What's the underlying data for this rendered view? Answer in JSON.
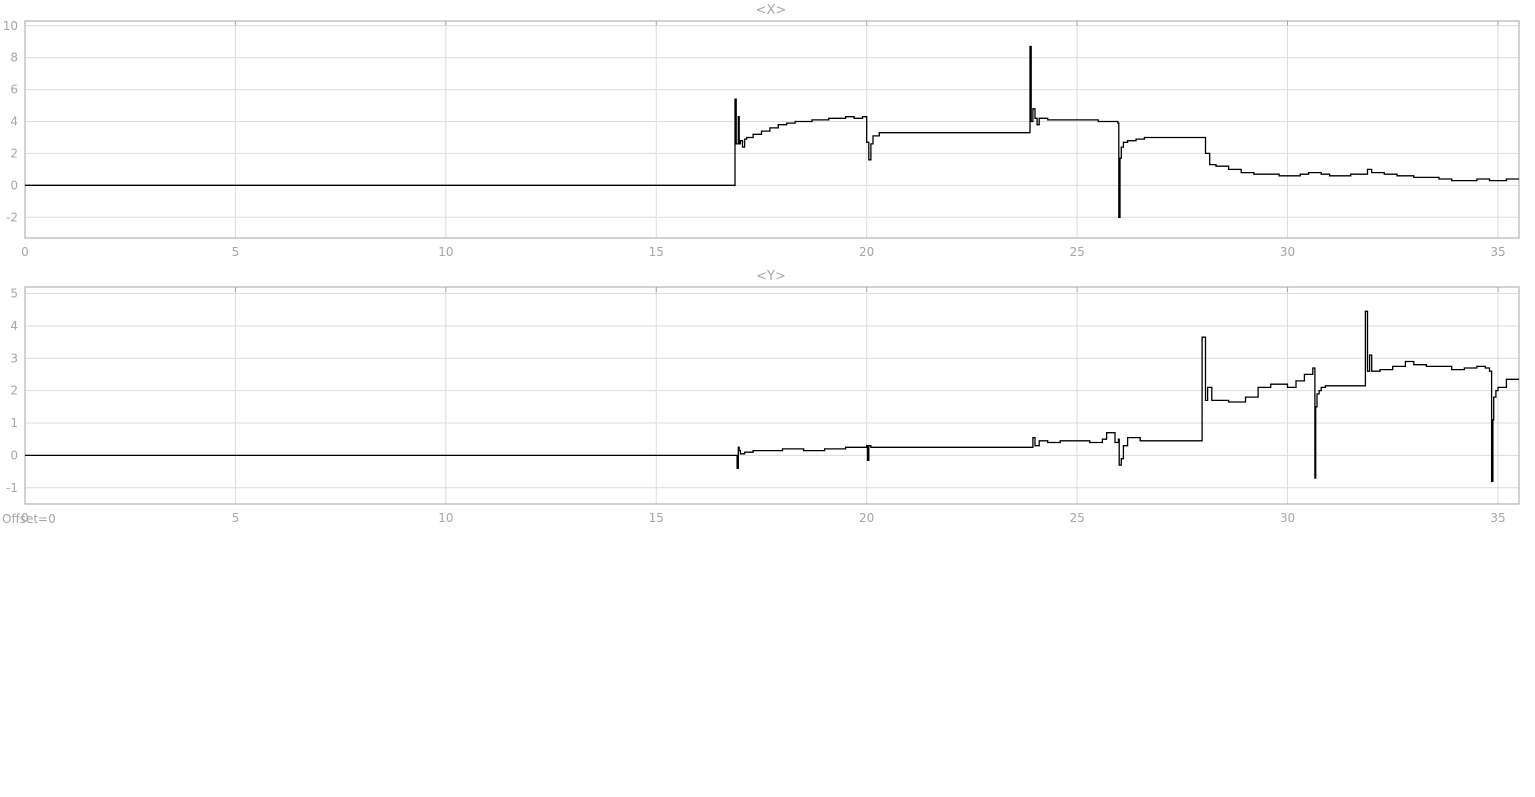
{
  "offset_label": "Offset=0",
  "colors": {
    "grid": "#dcdcdc",
    "axis": "#a6a6a6",
    "trace": "#000000",
    "text": "#a6a6a6"
  },
  "chart_data": [
    {
      "type": "line",
      "title": "<X>",
      "xlim": [
        0,
        35.5
      ],
      "ylim": [
        -3.3,
        10.3
      ],
      "xticks": [
        0,
        5,
        10,
        15,
        20,
        25,
        30,
        35
      ],
      "yticks": [
        -2,
        0,
        2,
        4,
        6,
        8,
        10
      ],
      "grid": true,
      "x": [
        0,
        16.85,
        16.87,
        16.9,
        16.92,
        16.95,
        16.97,
        17.0,
        17.05,
        17.1,
        17.15,
        17.3,
        17.5,
        17.7,
        17.9,
        18.1,
        18.3,
        18.5,
        18.7,
        18.9,
        19.1,
        19.3,
        19.5,
        19.7,
        19.9,
        20.0,
        20.05,
        20.1,
        20.15,
        20.3,
        21.0,
        22.0,
        23.0,
        23.85,
        23.88,
        23.91,
        23.95,
        24.0,
        24.05,
        24.1,
        24.3,
        24.6,
        24.9,
        25.2,
        25.5,
        25.8,
        25.97,
        25.99,
        26.02,
        26.05,
        26.1,
        26.2,
        26.4,
        26.6,
        27.0,
        27.5,
        28.0,
        28.05,
        28.15,
        28.3,
        28.6,
        28.9,
        29.2,
        29.5,
        29.8,
        30.0,
        30.3,
        30.5,
        30.8,
        31.0,
        31.5,
        31.8,
        31.9,
        32.0,
        32.3,
        32.6,
        33.0,
        33.3,
        33.6,
        33.9,
        34.2,
        34.5,
        34.8,
        35.0,
        35.2,
        35.5
      ],
      "y": [
        0,
        0,
        5.4,
        2.6,
        2.6,
        4.3,
        2.6,
        2.8,
        2.4,
        2.9,
        3.0,
        3.2,
        3.4,
        3.6,
        3.8,
        3.9,
        4.0,
        4.0,
        4.1,
        4.1,
        4.2,
        4.2,
        4.3,
        4.2,
        4.3,
        2.7,
        1.6,
        2.6,
        3.1,
        3.3,
        3.3,
        3.3,
        3.3,
        3.3,
        8.7,
        4.0,
        4.8,
        4.2,
        3.8,
        4.2,
        4.1,
        4.1,
        4.1,
        4.1,
        4.0,
        4.0,
        3.9,
        -2.0,
        1.7,
        2.4,
        2.7,
        2.8,
        2.9,
        3.0,
        3.0,
        3.0,
        3.0,
        2.0,
        1.3,
        1.2,
        1.0,
        0.8,
        0.7,
        0.7,
        0.6,
        0.6,
        0.7,
        0.8,
        0.7,
        0.6,
        0.7,
        0.7,
        1.0,
        0.8,
        0.7,
        0.6,
        0.5,
        0.5,
        0.4,
        0.3,
        0.3,
        0.4,
        0.3,
        0.3,
        0.4,
        0.4
      ]
    },
    {
      "type": "line",
      "title": "<Y>",
      "xlim": [
        0,
        35.5
      ],
      "ylim": [
        -1.5,
        5.2
      ],
      "xticks": [
        0,
        5,
        10,
        15,
        20,
        25,
        30,
        35
      ],
      "yticks": [
        -1,
        0,
        1,
        2,
        3,
        4,
        5
      ],
      "grid": true,
      "x": [
        0,
        16.9,
        16.92,
        16.95,
        16.97,
        17.0,
        17.1,
        17.3,
        17.6,
        18.0,
        18.5,
        19.0,
        19.5,
        20.0,
        20.02,
        20.05,
        20.1,
        20.2,
        20.5,
        21.5,
        22.5,
        23.5,
        23.9,
        23.95,
        24.0,
        24.1,
        24.3,
        24.6,
        25.0,
        25.3,
        25.6,
        25.7,
        25.9,
        25.98,
        26.0,
        26.05,
        26.1,
        26.2,
        26.4,
        26.5,
        27.0,
        27.5,
        27.95,
        27.97,
        28.05,
        28.1,
        28.2,
        28.3,
        28.6,
        29.0,
        29.3,
        29.6,
        30.0,
        30.2,
        30.4,
        30.6,
        30.65,
        30.67,
        30.7,
        30.75,
        30.8,
        30.9,
        31.2,
        31.5,
        31.8,
        31.85,
        31.9,
        31.95,
        32.0,
        32.2,
        32.5,
        32.8,
        33.0,
        33.3,
        33.6,
        33.9,
        34.2,
        34.5,
        34.7,
        34.8,
        34.85,
        34.88,
        34.9,
        34.95,
        35.0,
        35.2,
        35.5
      ],
      "y": [
        0,
        0,
        -0.4,
        0.25,
        0.15,
        0.05,
        0.1,
        0.15,
        0.15,
        0.2,
        0.15,
        0.2,
        0.25,
        0.3,
        -0.15,
        0.3,
        0.25,
        0.25,
        0.25,
        0.25,
        0.25,
        0.25,
        0.25,
        0.55,
        0.3,
        0.45,
        0.4,
        0.45,
        0.45,
        0.4,
        0.5,
        0.7,
        0.4,
        0.5,
        -0.3,
        -0.1,
        0.3,
        0.55,
        0.55,
        0.45,
        0.45,
        0.45,
        0.45,
        3.65,
        1.7,
        2.1,
        1.7,
        1.7,
        1.65,
        1.8,
        2.1,
        2.2,
        2.1,
        2.3,
        2.5,
        2.7,
        -0.7,
        1.5,
        1.9,
        2.0,
        2.1,
        2.15,
        2.15,
        2.15,
        2.15,
        4.45,
        2.6,
        3.1,
        2.6,
        2.65,
        2.75,
        2.9,
        2.8,
        2.75,
        2.75,
        2.65,
        2.7,
        2.75,
        2.7,
        2.6,
        -0.8,
        1.1,
        1.8,
        2.0,
        2.1,
        2.35,
        2.35
      ]
    }
  ]
}
